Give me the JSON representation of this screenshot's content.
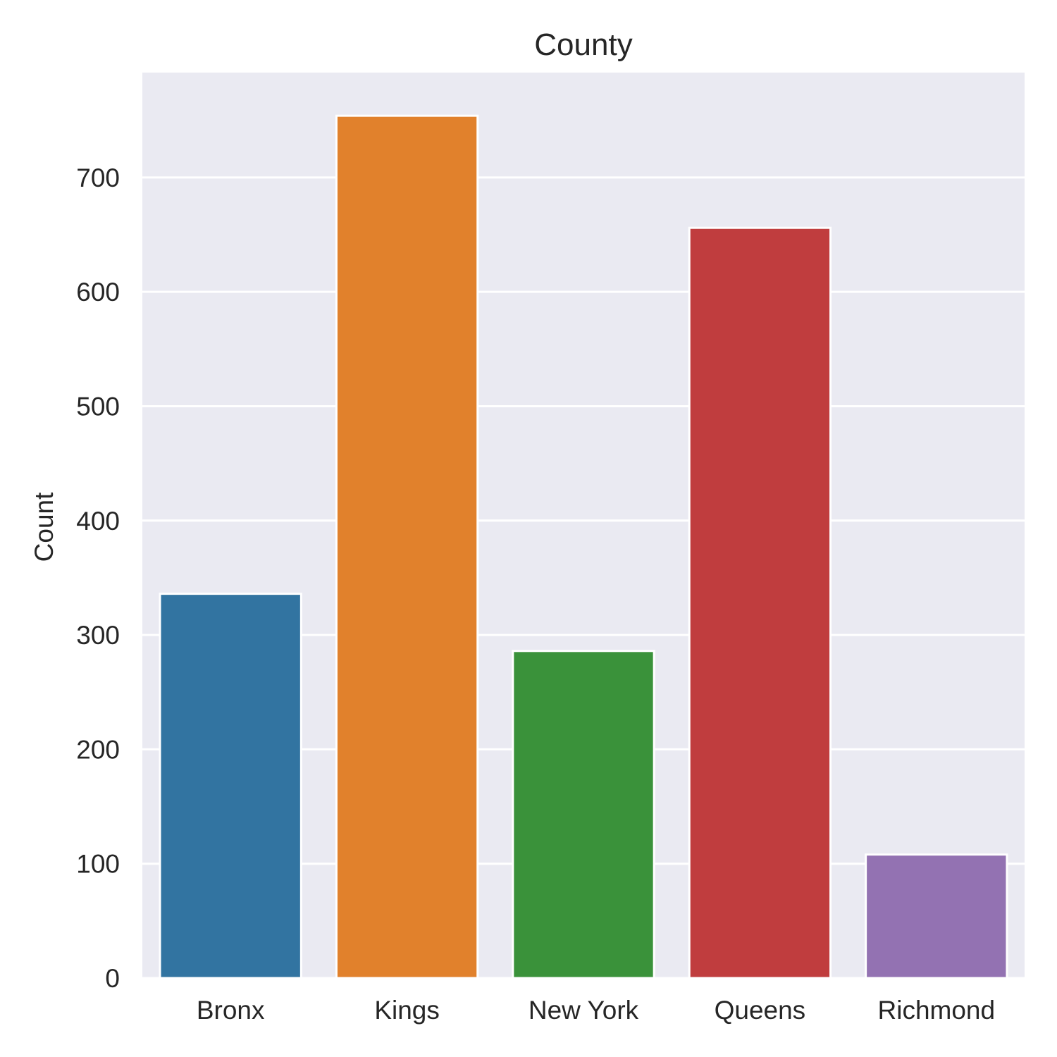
{
  "chart_data": {
    "type": "bar",
    "title": "County",
    "xlabel": "",
    "ylabel": "Count",
    "categories": [
      "Bronx",
      "Kings",
      "New York",
      "Queens",
      "Richmond"
    ],
    "values": [
      336,
      754,
      286,
      656,
      108
    ],
    "colors": [
      "#3274a1",
      "#e1812c",
      "#3a923a",
      "#c03d3e",
      "#9372b2"
    ],
    "ylim": [
      0,
      791.7
    ],
    "yticks": [
      0,
      100,
      200,
      300,
      400,
      500,
      600,
      700
    ],
    "grid": true,
    "background": "#eaeaf2",
    "grid_color": "#ffffff"
  }
}
